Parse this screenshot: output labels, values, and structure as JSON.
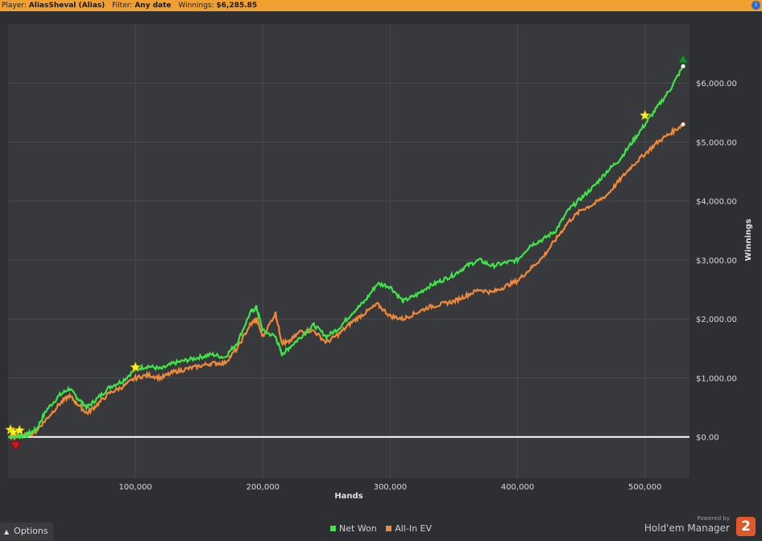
{
  "header": {
    "player_label": "Player:",
    "player_value": "AliasSheval (Alias)",
    "filter_label": "Filter:",
    "filter_value": "Any date",
    "winnings_label": "Winnings:",
    "winnings_value": "$6,285.85",
    "icon": "info-icon"
  },
  "options": {
    "label": "Options",
    "icon": "chevron-up-icon"
  },
  "branding": {
    "powered_by": "Powered by",
    "name": "Hold'em Manager",
    "logo_text": "2"
  },
  "colors": {
    "background": "#2e2f32",
    "plot_background": "#38393c",
    "grid": "#4a4b4e",
    "net_won": "#3ee64a",
    "all_in_ev": "#f08a3a",
    "zero_line": "#ffffff",
    "header": "#f0a030"
  },
  "chart_data": {
    "type": "line",
    "xlabel": "Hands",
    "ylabel": "Winnings",
    "xlim": [
      0,
      535000
    ],
    "ylim": [
      -700,
      7000
    ],
    "x_ticks": [
      100000,
      200000,
      300000,
      400000,
      500000
    ],
    "x_tick_labels": [
      "100,000",
      "200,000",
      "300,000",
      "400,000",
      "500,000"
    ],
    "y_ticks": [
      0,
      1000,
      2000,
      3000,
      4000,
      5000,
      6000
    ],
    "y_tick_labels": [
      "$0.00",
      "$1,000.00",
      "$2,000.00",
      "$3,000.00",
      "$4,000.00",
      "$5,000.00",
      "$6,000.00"
    ],
    "grid": true,
    "legend_position": "bottom-center",
    "series": [
      {
        "name": "Net Won",
        "color": "#3ee64a",
        "x": [
          0,
          8000,
          15000,
          22000,
          30000,
          40000,
          48000,
          55000,
          62000,
          70000,
          80000,
          90000,
          100000,
          110000,
          120000,
          130000,
          140000,
          150000,
          160000,
          170000,
          180000,
          190000,
          195000,
          200000,
          210000,
          215000,
          220000,
          230000,
          240000,
          250000,
          260000,
          270000,
          280000,
          290000,
          300000,
          310000,
          320000,
          330000,
          340000,
          350000,
          360000,
          370000,
          380000,
          390000,
          400000,
          410000,
          420000,
          430000,
          440000,
          450000,
          460000,
          470000,
          480000,
          490000,
          500000,
          510000,
          520000,
          530000
        ],
        "values": [
          0,
          20,
          40,
          120,
          450,
          700,
          820,
          650,
          500,
          650,
          850,
          950,
          1150,
          1200,
          1150,
          1250,
          1300,
          1350,
          1400,
          1350,
          1600,
          2100,
          2200,
          1800,
          1700,
          1400,
          1500,
          1700,
          1900,
          1700,
          1850,
          2100,
          2300,
          2600,
          2550,
          2300,
          2400,
          2550,
          2650,
          2750,
          2900,
          3000,
          2900,
          2950,
          3000,
          3250,
          3350,
          3500,
          3850,
          4050,
          4250,
          4500,
          4700,
          5000,
          5300,
          5600,
          5900,
          6285.85
        ],
        "marker_start": {
          "x": 0,
          "y": 0
        },
        "marker_max": {
          "x": 530000,
          "y": 6400
        },
        "marker_min": {
          "x": 6000,
          "y": -150
        }
      },
      {
        "name": "All-In EV",
        "color": "#f08a3a",
        "x": [
          0,
          8000,
          15000,
          22000,
          30000,
          40000,
          48000,
          55000,
          62000,
          70000,
          80000,
          90000,
          100000,
          110000,
          120000,
          130000,
          140000,
          150000,
          160000,
          170000,
          180000,
          190000,
          195000,
          200000,
          210000,
          215000,
          220000,
          230000,
          240000,
          250000,
          260000,
          270000,
          280000,
          290000,
          300000,
          310000,
          320000,
          330000,
          340000,
          350000,
          360000,
          370000,
          380000,
          390000,
          400000,
          410000,
          420000,
          430000,
          440000,
          450000,
          460000,
          470000,
          480000,
          490000,
          500000,
          510000,
          520000,
          530000
        ],
        "values": [
          0,
          10,
          30,
          100,
          300,
          550,
          700,
          550,
          400,
          550,
          750,
          850,
          1000,
          1050,
          1000,
          1100,
          1150,
          1200,
          1250,
          1250,
          1500,
          1900,
          2000,
          1700,
          2100,
          1600,
          1600,
          1800,
          1800,
          1600,
          1750,
          1950,
          2100,
          2250,
          2050,
          2000,
          2100,
          2200,
          2250,
          2300,
          2400,
          2500,
          2450,
          2550,
          2650,
          2850,
          3050,
          3350,
          3650,
          3850,
          3950,
          4100,
          4350,
          4600,
          4800,
          5000,
          5150,
          5300
        ]
      }
    ],
    "star_markers": [
      {
        "x": 0,
        "y": 120
      },
      {
        "x": 4000,
        "y": 80
      },
      {
        "x": 9000,
        "y": 110
      },
      {
        "x": 100000,
        "y": 1180
      },
      {
        "x": 500000,
        "y": 5450
      }
    ]
  }
}
